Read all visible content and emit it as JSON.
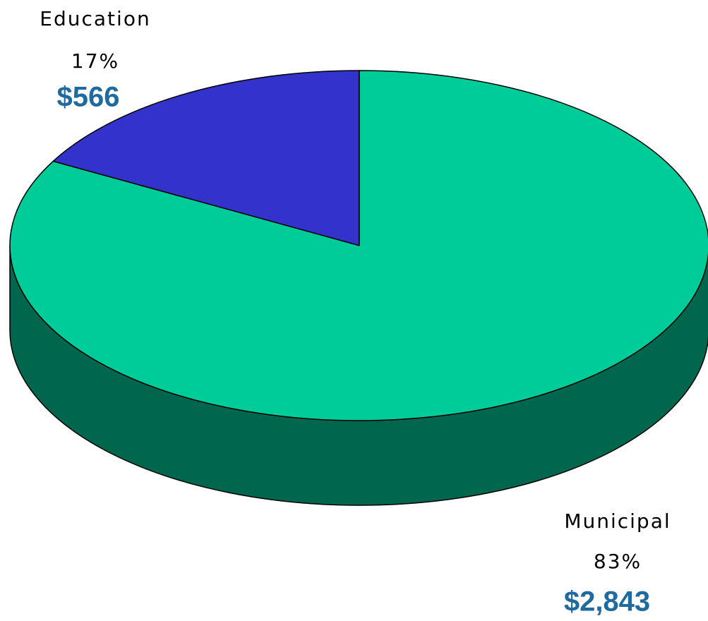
{
  "chart_data": {
    "type": "pie3d",
    "categories": [
      "Education",
      "Municipal"
    ],
    "values": [
      17,
      83
    ],
    "value_labels": [
      "17%",
      "83%"
    ],
    "amounts": [
      566,
      2843
    ],
    "amount_labels": [
      "$566",
      "$2,843"
    ],
    "colors": [
      "#3333cc",
      "#00cc99"
    ]
  }
}
